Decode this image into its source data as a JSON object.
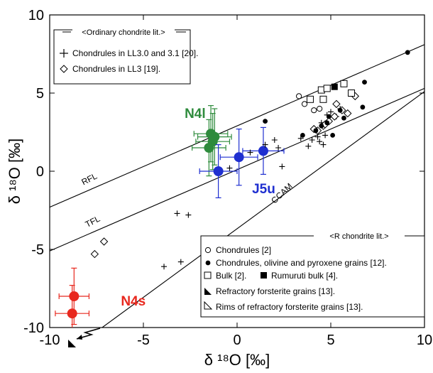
{
  "chart_data": {
    "type": "scatter",
    "xlabel": "δ ¹⁸O [‰]",
    "ylabel": "δ ¹⁸O [‰]",
    "xlim": [
      -10,
      10
    ],
    "ylim": [
      -10,
      10
    ],
    "xticks": [
      -10,
      -5,
      0,
      5,
      10
    ],
    "yticks": [
      -10,
      -5,
      0,
      5,
      10
    ],
    "xtick_labels": [
      "-10",
      "-5",
      "0",
      "5",
      "10"
    ],
    "ytick_labels": [
      "-10",
      "-5",
      "0",
      "5",
      "10"
    ],
    "grid": false,
    "reference_lines": [
      {
        "label": "RFL",
        "x1": -10,
        "y1": -2.3,
        "x2": 10,
        "y2": 8.1
      },
      {
        "label": "TFL",
        "x1": -10,
        "y1": -5.1,
        "x2": 10,
        "y2": 5.3
      },
      {
        "label": "CCAM",
        "x1": -7.2,
        "y1": -10,
        "x2": 10,
        "y2": 5.1
      }
    ],
    "legend_upper": {
      "title": "<Ordinary chondrite lit.>",
      "entries": [
        "Chondrules in LL3.0 and 3.1 [20].",
        "Chondrules in LL3 [19]."
      ]
    },
    "legend_lower": {
      "title": "<R chondrite lit.>",
      "entries": [
        "Chondrules [2]",
        "Chondrules, olivine and pyroxene grains [12].",
        "Bulk  [2].",
        "Rumuruti bulk [4].",
        "Refractory forsterite grains [13].",
        "Rims of refractory forsterite grains [13]."
      ]
    },
    "series": [
      {
        "name": "N4l",
        "color": "#2e8b3c",
        "marker": "filled-circle",
        "points": [
          [
            -1.4,
            2.4,
            0.9,
            1.8
          ],
          [
            -1.2,
            2.2,
            0.9,
            1.8
          ],
          [
            -1.3,
            1.9,
            0.9,
            1.8
          ],
          [
            -1.5,
            1.5,
            0.9,
            1.8
          ]
        ]
      },
      {
        "name": "J5u",
        "color": "#1f2fd0",
        "marker": "filled-circle",
        "points": [
          [
            -1.0,
            0.0,
            1.0,
            1.7
          ],
          [
            0.1,
            0.9,
            1.0,
            1.8
          ],
          [
            1.4,
            1.3,
            1.1,
            1.5
          ]
        ]
      },
      {
        "name": "N4s",
        "color": "#e8281e",
        "marker": "filled-circle",
        "points": [
          [
            -8.7,
            -8.0,
            0.8,
            1.8
          ],
          [
            -8.8,
            -9.1,
            0.9,
            1.8
          ]
        ]
      },
      {
        "name": "Chondrules in LL3.0 and 3.1 [20].",
        "marker": "plus",
        "points": [
          [
            -3.2,
            -2.7
          ],
          [
            -2.6,
            -2.8
          ],
          [
            -1.8,
            -5.1
          ],
          [
            -3.9,
            -6.1
          ],
          [
            -3.0,
            -5.8
          ],
          [
            -0.4,
            0.2
          ],
          [
            0.7,
            1.2
          ],
          [
            1.5,
            1.7
          ],
          [
            2.0,
            2.0
          ],
          [
            2.4,
            0.3
          ],
          [
            2.2,
            1.5
          ],
          [
            3.8,
            1.6
          ],
          [
            4.0,
            2.0
          ],
          [
            4.3,
            2.2
          ],
          [
            4.2,
            2.6
          ],
          [
            4.5,
            3.1
          ],
          [
            4.8,
            3.6
          ],
          [
            5.0,
            3.8
          ],
          [
            5.3,
            3.5
          ],
          [
            5.5,
            4.0
          ],
          [
            3.4,
            2.1
          ],
          [
            4.6,
            1.7
          ],
          [
            4.4,
            1.9
          ],
          [
            4.7,
            2.3
          ]
        ]
      },
      {
        "name": "Chondrules in LL3 [19].",
        "marker": "diamond",
        "points": [
          [
            -7.6,
            -5.3
          ],
          [
            -7.1,
            -4.5
          ],
          [
            4.3,
            2.6
          ],
          [
            4.6,
            2.9
          ],
          [
            4.9,
            3.2
          ],
          [
            5.2,
            3.5
          ],
          [
            5.6,
            3.9
          ],
          [
            5.3,
            4.3
          ],
          [
            5.9,
            3.7
          ],
          [
            6.3,
            4.8
          ],
          [
            4.7,
            3.0
          ],
          [
            4.1,
            2.7
          ]
        ]
      },
      {
        "name": "Chondrules [2]",
        "marker": "open-circle",
        "points": [
          [
            3.3,
            4.8
          ],
          [
            3.6,
            4.3
          ],
          [
            4.1,
            3.9
          ],
          [
            4.4,
            4.0
          ]
        ]
      },
      {
        "name": "Chondrules, olivine and pyroxene grains [12].",
        "marker": "dot",
        "points": [
          [
            1.5,
            3.2
          ],
          [
            3.5,
            2.3
          ],
          [
            4.2,
            2.6
          ],
          [
            4.5,
            2.9
          ],
          [
            4.8,
            3.1
          ],
          [
            5.1,
            2.3
          ],
          [
            5.5,
            3.9
          ],
          [
            6.7,
            4.1
          ],
          [
            6.8,
            5.7
          ],
          [
            9.1,
            7.6
          ],
          [
            5.7,
            3.4
          ],
          [
            4.9,
            3.5
          ]
        ]
      },
      {
        "name": "Bulk  [2].",
        "marker": "open-square",
        "points": [
          [
            4.5,
            5.2
          ],
          [
            4.8,
            5.3
          ],
          [
            5.7,
            5.6
          ],
          [
            6.1,
            5.0
          ],
          [
            3.9,
            4.6
          ],
          [
            4.6,
            4.6
          ]
        ]
      },
      {
        "name": "Rumuruti bulk [4].",
        "marker": "filled-square",
        "points": [
          [
            5.2,
            5.4
          ]
        ]
      }
    ],
    "annotations": [
      {
        "text": "N4l",
        "x": -2.8,
        "y": 3.4,
        "color": "#2e8b3c"
      },
      {
        "text": "J5u",
        "x": 0.8,
        "y": -1.4,
        "color": "#1f2fd0"
      },
      {
        "text": "N4s",
        "x": -6.2,
        "y": -8.6,
        "color": "#e8281e"
      },
      {
        "text": "RFL",
        "x": -8.2,
        "y": -0.9,
        "color": "#000000"
      },
      {
        "text": "TFL",
        "x": -8.0,
        "y": -3.6,
        "color": "#000000"
      },
      {
        "text": "CCAM",
        "x": 2.0,
        "y": -2.1,
        "color": "#000000"
      }
    ]
  }
}
